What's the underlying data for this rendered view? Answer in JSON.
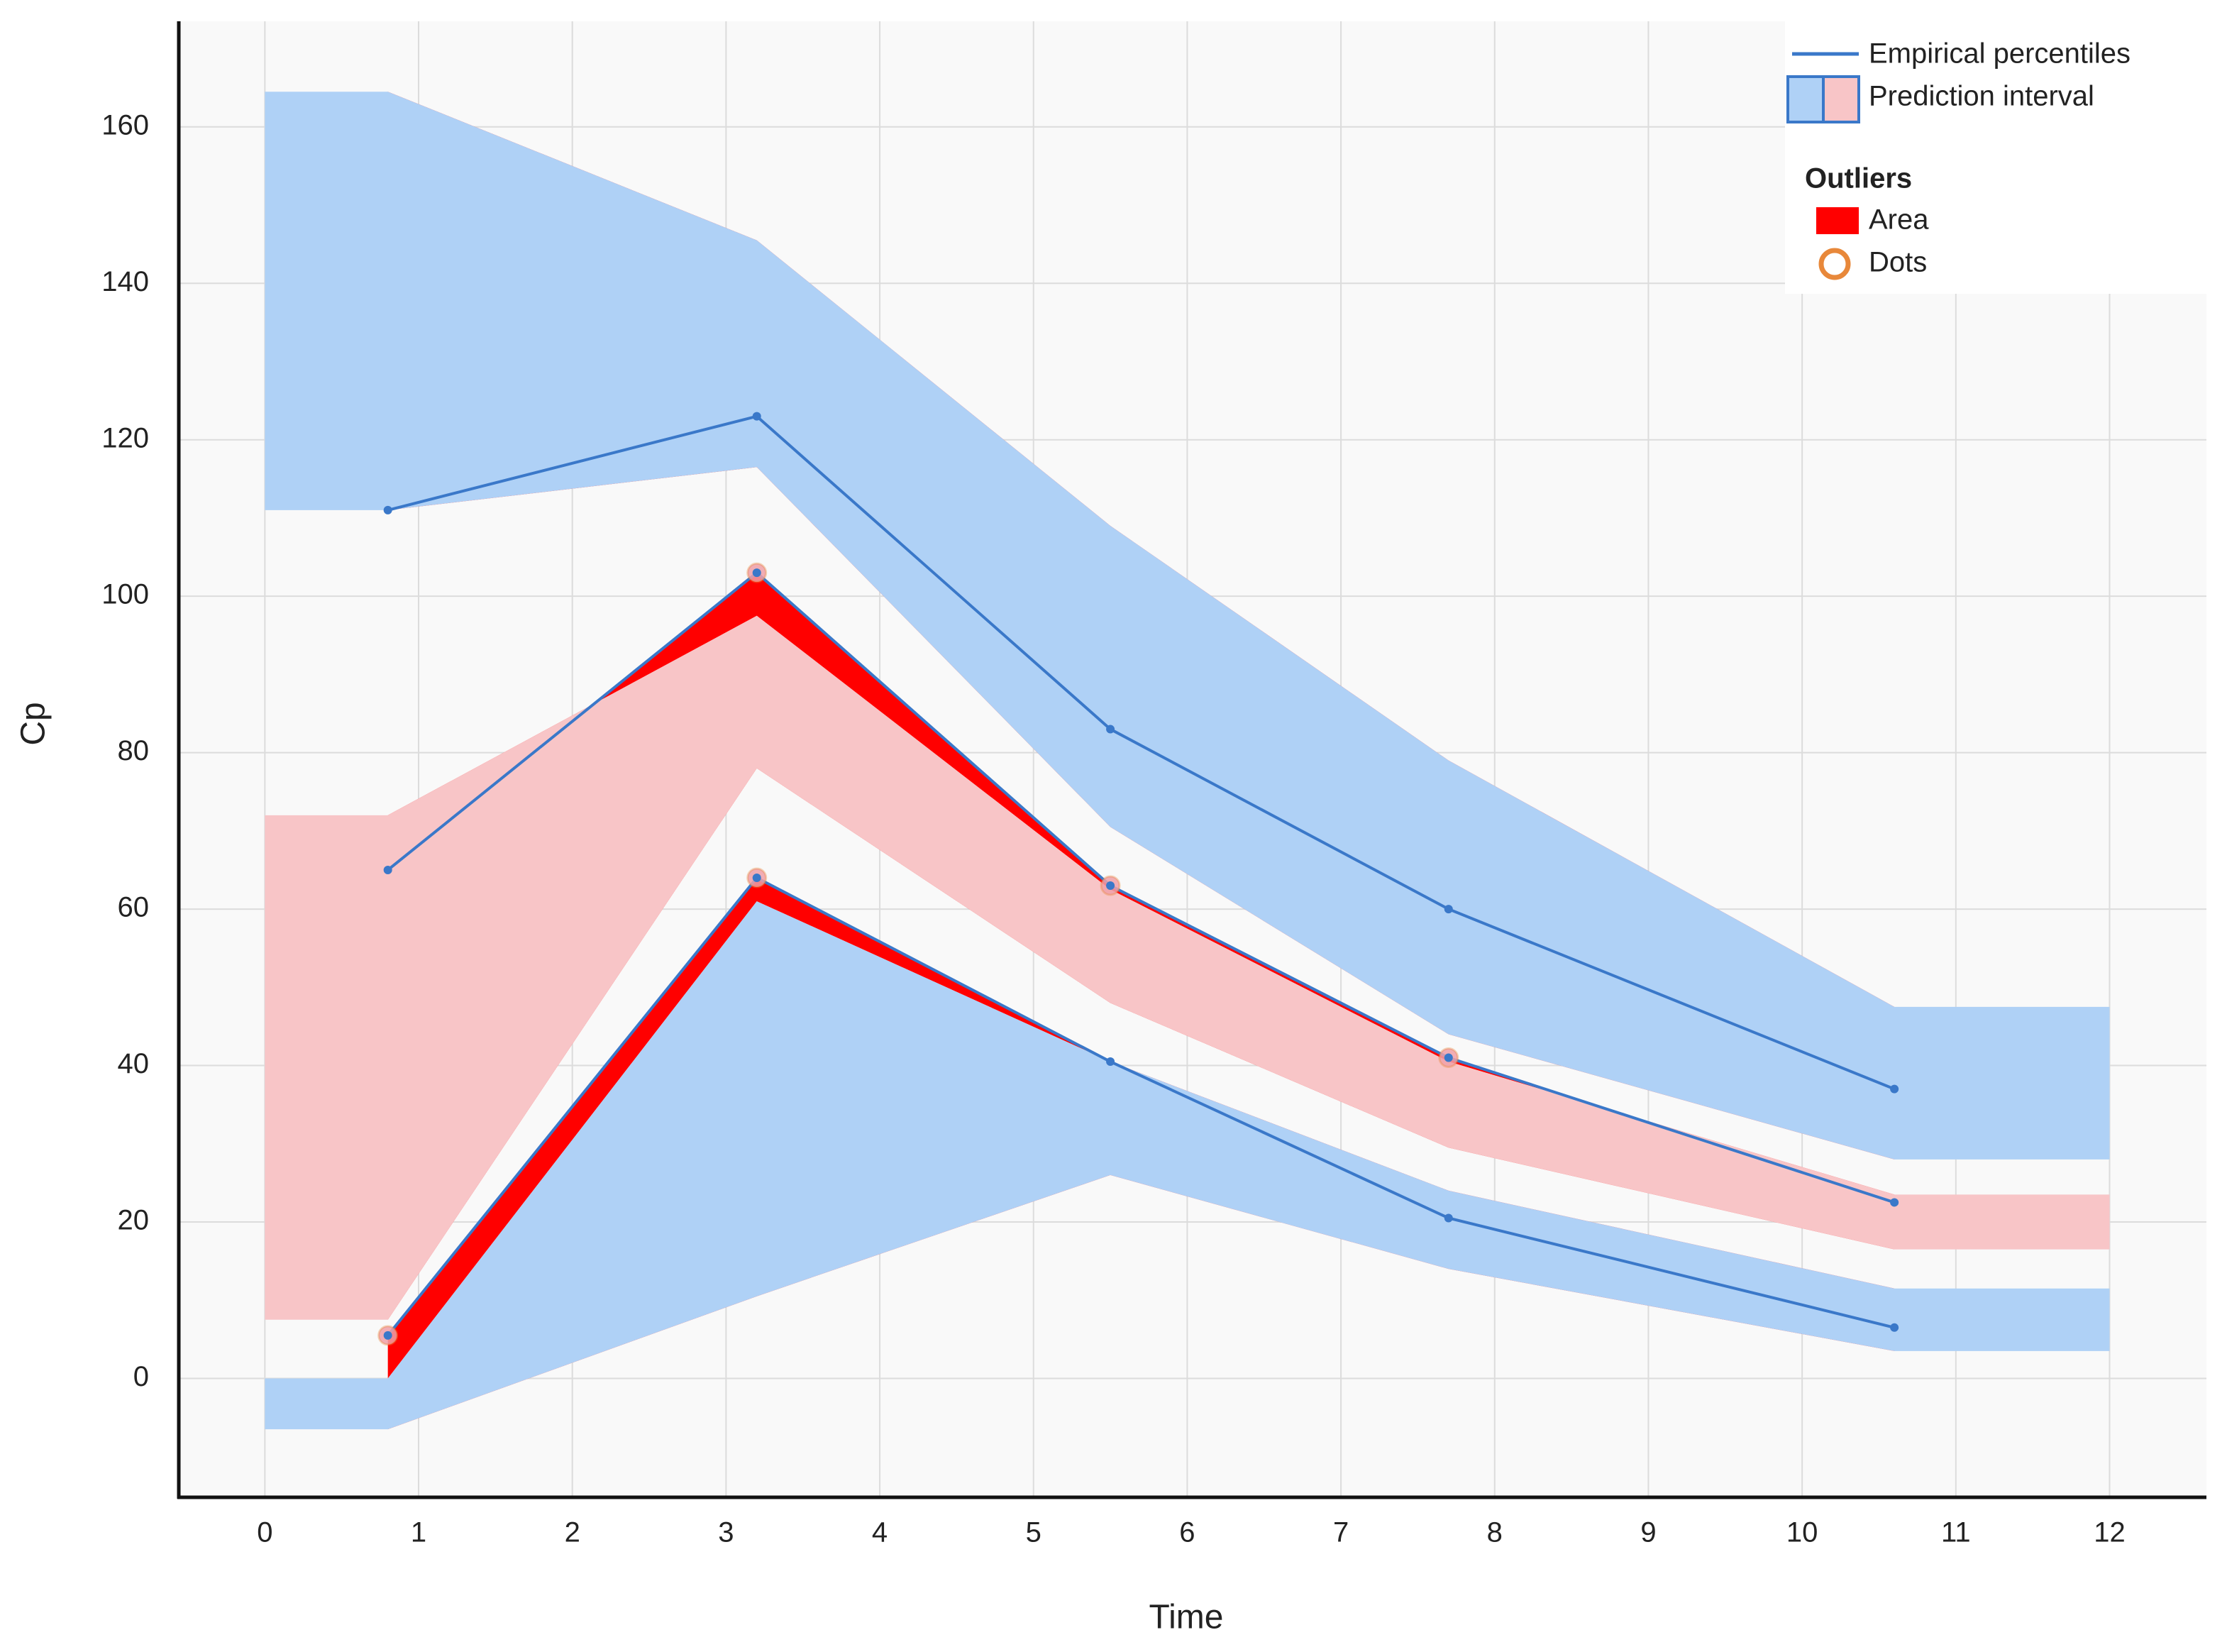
{
  "chart_data": {
    "type": "line",
    "x_label": "Time",
    "y_label": "Cp",
    "xlim": [
      -0.56,
      12.63
    ],
    "ylim": [
      -15.2,
      173.5
    ],
    "xticks": [
      0,
      1,
      2,
      3,
      4,
      5,
      6,
      7,
      8,
      9,
      10,
      11,
      12
    ],
    "yticks": [
      0,
      20,
      40,
      60,
      80,
      100,
      120,
      140,
      160
    ],
    "grid": true,
    "line_color": "#3a78c9",
    "outlier_color": "#ff0000",
    "dot_color": "#e8883a",
    "legend": {
      "position": "upper right",
      "percentiles_label": "Empirical percentiles",
      "interval_label": "Prediction interval",
      "outliers_title": "Outliers",
      "area_label": "Area",
      "dots_label": "Dots"
    },
    "x": [
      0.8,
      3.2,
      5.5,
      7.7,
      10.6
    ],
    "series": [
      {
        "values": [
          111,
          123,
          83,
          60,
          37
        ]
      },
      {
        "values": [
          65,
          103,
          63,
          41,
          22.5
        ]
      },
      {
        "values": [
          5.5,
          64,
          40.5,
          20.5,
          6.5
        ]
      }
    ],
    "band_x": [
      0,
      0.8,
      3.2,
      5.5,
      7.7,
      10.6,
      12
    ],
    "bands": [
      {
        "color": "#afd1f6",
        "low": [
          111,
          111,
          116.5,
          70.5,
          44,
          28,
          28
        ],
        "high": [
          164.5,
          164.5,
          145.5,
          109,
          79,
          47.5,
          47.5
        ]
      },
      {
        "color": "#f8c5c7",
        "low": [
          7.5,
          7.5,
          78,
          48,
          29.5,
          16.5,
          16.5
        ],
        "high": [
          72,
          72,
          97.5,
          62.5,
          40.5,
          23.5,
          23.5
        ]
      },
      {
        "color": "#afd1f6",
        "low": [
          -6.5,
          -6.5,
          10.5,
          26,
          14,
          3.5,
          3.5
        ],
        "high": [
          0,
          0,
          61,
          40.5,
          24,
          11.5,
          11.5
        ]
      }
    ]
  }
}
